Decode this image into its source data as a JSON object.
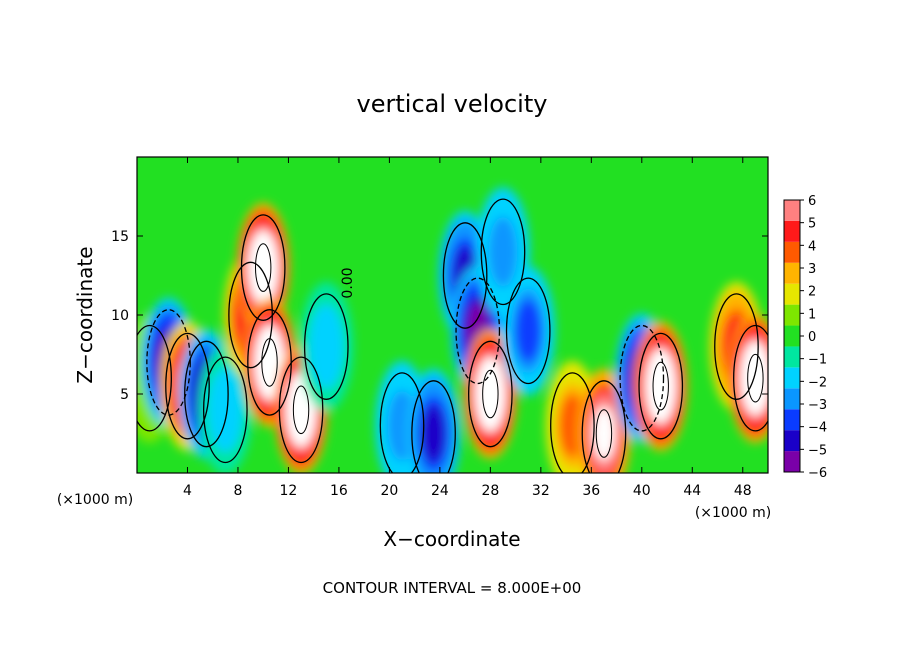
{
  "chart_data": {
    "type": "heatmap",
    "title": "vertical velocity",
    "xlabel": "X−coordinate",
    "ylabel": "Z−coordinate",
    "x_unit_left": "(×1000 m)",
    "x_unit_right": "(×1000 m)",
    "xlim": [
      0,
      50
    ],
    "ylim": [
      0,
      20
    ],
    "xticks": [
      4,
      8,
      12,
      16,
      20,
      24,
      28,
      32,
      36,
      40,
      44,
      48
    ],
    "yticks": [
      5,
      10,
      15
    ],
    "contour_label": "0.00",
    "contour_interval_text": "CONTOUR INTERVAL = 8.000E+00",
    "colorbar": {
      "ticks": [
        6,
        5,
        4,
        3,
        2,
        1,
        0,
        -1,
        -2,
        -3,
        -4,
        -5,
        -6
      ],
      "tick_labels": [
        "6",
        "5",
        "4",
        "3",
        "2",
        "1",
        "0",
        "−1",
        "−2",
        "−3",
        "−4",
        "−5",
        "−6"
      ],
      "range": [
        -6,
        6
      ],
      "colors": [
        "#7a00a8",
        "#1a00c8",
        "#0a3cff",
        "#0a96ff",
        "#00d2ff",
        "#00e6a0",
        "#22e022",
        "#7ee600",
        "#e6e600",
        "#ffb400",
        "#ff5a00",
        "#ff1a1a",
        "#ff8080"
      ]
    },
    "features": [
      {
        "x": 1.0,
        "z": 6.0,
        "w": 0.6
      },
      {
        "x": 2.5,
        "z": 7.0,
        "w": -5.2
      },
      {
        "x": 4.0,
        "z": 5.5,
        "w": 5.8
      },
      {
        "x": 5.5,
        "z": 5.0,
        "w": -5.0
      },
      {
        "x": 7.0,
        "z": 4.0,
        "w": -1.5
      },
      {
        "x": 9.0,
        "z": 10.0,
        "w": 5.0
      },
      {
        "x": 10.0,
        "z": 13.0,
        "w": 8.0
      },
      {
        "x": 10.5,
        "z": 7.0,
        "w": 8.0
      },
      {
        "x": 13.0,
        "z": 4.0,
        "w": 8.0
      },
      {
        "x": 15.0,
        "z": 8.0,
        "w": -1.5
      },
      {
        "x": 21.0,
        "z": 3.0,
        "w": -3.0
      },
      {
        "x": 23.5,
        "z": 2.5,
        "w": -4.5
      },
      {
        "x": 26.0,
        "z": 12.5,
        "w": -4.5
      },
      {
        "x": 27.0,
        "z": 9.0,
        "w": -5.5
      },
      {
        "x": 28.0,
        "z": 5.0,
        "w": 8.0
      },
      {
        "x": 29.0,
        "z": 14.0,
        "w": -3.0
      },
      {
        "x": 31.0,
        "z": 9.0,
        "w": -3.5
      },
      {
        "x": 34.5,
        "z": 3.0,
        "w": 3.5
      },
      {
        "x": 37.0,
        "z": 2.5,
        "w": 6.5
      },
      {
        "x": 40.0,
        "z": 6.0,
        "w": -5.5
      },
      {
        "x": 41.5,
        "z": 5.5,
        "w": 8.0
      },
      {
        "x": 47.5,
        "z": 8.0,
        "w": 4.5
      },
      {
        "x": 49.0,
        "z": 6.0,
        "w": 8.0
      }
    ]
  }
}
